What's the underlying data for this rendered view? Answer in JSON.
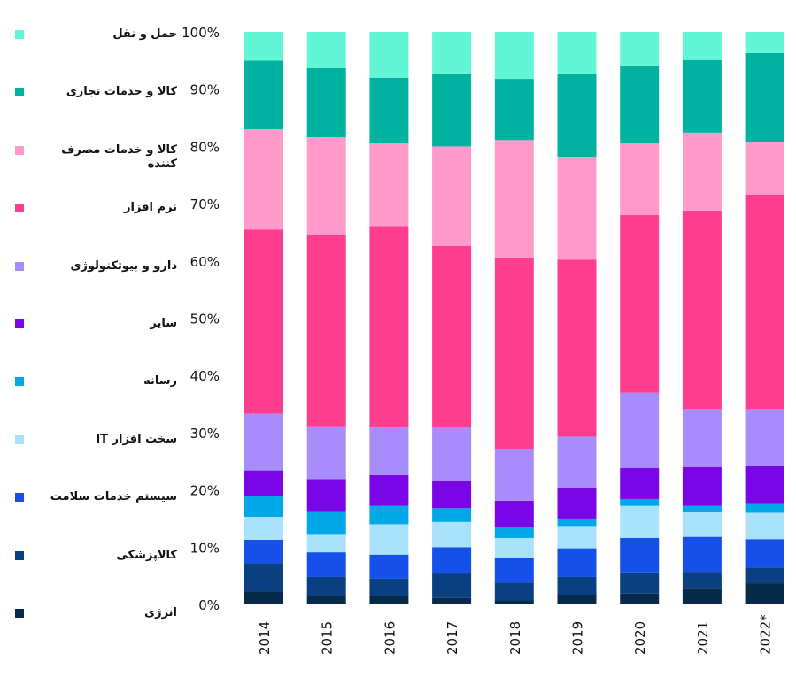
{
  "chart_data": {
    "type": "bar",
    "stacked": true,
    "normalized": true,
    "categories": [
      "2014",
      "2015",
      "2016",
      "2017",
      "2018",
      "2019",
      "2020",
      "2021",
      "2022*"
    ],
    "ylim": [
      0,
      100
    ],
    "yticks": [
      "0%",
      "10%",
      "20%",
      "30%",
      "40%",
      "50%",
      "60%",
      "70%",
      "80%",
      "90%",
      "100%"
    ],
    "grid": false,
    "legend_position": "left",
    "series": [
      {
        "name": "انرژی",
        "color": "#062a4a",
        "values": [
          2.3,
          1.5,
          1.5,
          1.1,
          0.7,
          1.7,
          1.9,
          2.9,
          3.7
        ]
      },
      {
        "name": "کالاپزشکی",
        "color": "#0a3f82",
        "values": [
          4.9,
          3.3,
          3.0,
          4.3,
          3.1,
          3.1,
          3.7,
          2.8,
          2.7
        ]
      },
      {
        "name": "سیستم خدمات سلامت",
        "color": "#1550e8",
        "values": [
          4.1,
          4.3,
          4.2,
          4.6,
          4.4,
          5.0,
          6.0,
          6.1,
          5.0
        ]
      },
      {
        "name": "سخت افزار IT",
        "color": "#a8e2fb",
        "values": [
          4.0,
          3.2,
          5.3,
          4.4,
          3.4,
          3.9,
          5.6,
          4.4,
          4.6
        ]
      },
      {
        "name": "رسانه",
        "color": "#00a8e8",
        "values": [
          3.7,
          4.0,
          3.2,
          2.4,
          2.0,
          1.3,
          1.2,
          1.0,
          1.7
        ]
      },
      {
        "name": "سایر",
        "color": "#7a06e8",
        "values": [
          4.4,
          5.6,
          5.4,
          4.7,
          4.5,
          5.4,
          5.4,
          6.8,
          6.5
        ]
      },
      {
        "name": "دارو و بیوتکنولوژی",
        "color": "#a98cfb",
        "values": [
          9.9,
          9.2,
          8.3,
          9.5,
          9.1,
          8.9,
          13.2,
          10.1,
          9.9
        ]
      },
      {
        "name": "نرم افزار",
        "color": "#ff3d8e",
        "values": [
          32.2,
          33.5,
          35.2,
          31.6,
          33.4,
          30.9,
          31.0,
          34.7,
          37.5
        ]
      },
      {
        "name": "کالا و خدمات مصرف کننده",
        "color": "#ff9acb",
        "values": [
          17.5,
          17.0,
          14.4,
          17.4,
          20.5,
          18.0,
          12.5,
          13.6,
          9.2
        ]
      },
      {
        "name": "کالا و خدمات تجاری",
        "color": "#00b3a0",
        "values": [
          12.0,
          12.1,
          11.5,
          12.6,
          10.7,
          14.4,
          13.5,
          12.7,
          15.5
        ]
      },
      {
        "name": "حمل و نقل",
        "color": "#62f5d6",
        "values": [
          5.0,
          6.3,
          8.0,
          7.4,
          8.2,
          7.4,
          6.0,
          4.9,
          3.7
        ]
      }
    ]
  }
}
